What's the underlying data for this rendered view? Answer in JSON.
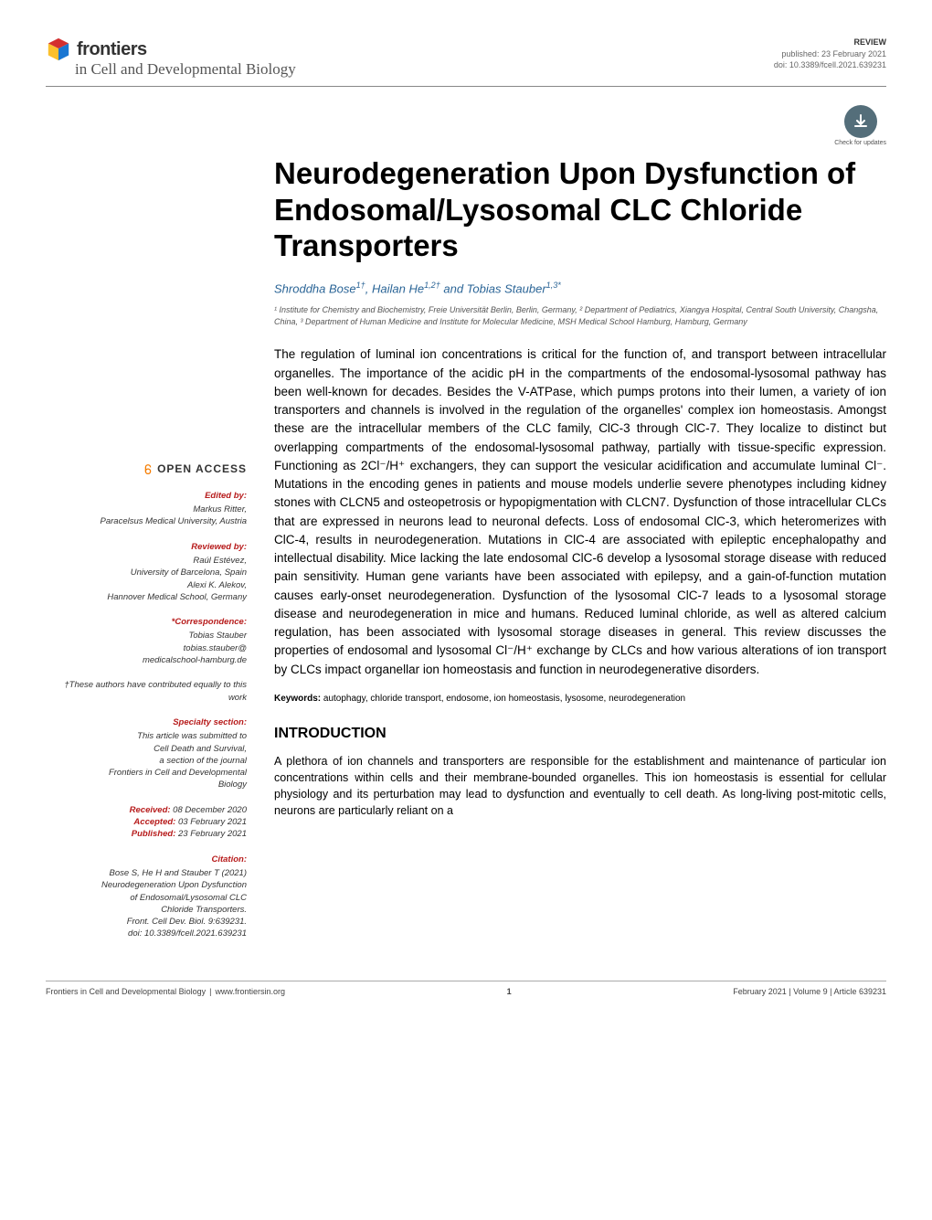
{
  "header": {
    "logo_text": "frontiers",
    "journal_name": "in Cell and Developmental Biology",
    "pub_type": "REVIEW",
    "pub_date": "published: 23 February 2021",
    "doi": "doi: 10.3389/fcell.2021.639231"
  },
  "badge": {
    "label": "Check for updates"
  },
  "title": "Neurodegeneration Upon Dysfunction of Endosomal/Lysosomal CLC Chloride Transporters",
  "authors_html": "Shroddha Bose<sup>1†</sup>, Hailan He<sup>1,2†</sup> and Tobias Stauber<sup>1,3*</sup>",
  "affiliations": "¹ Institute for Chemistry and Biochemistry, Freie Universität Berlin, Berlin, Germany, ² Department of Pediatrics, Xiangya Hospital, Central South University, Changsha, China, ³ Department of Human Medicine and Institute for Molecular Medicine, MSH Medical School Hamburg, Hamburg, Germany",
  "abstract": "The regulation of luminal ion concentrations is critical for the function of, and transport between intracellular organelles. The importance of the acidic pH in the compartments of the endosomal-lysosomal pathway has been well-known for decades. Besides the V-ATPase, which pumps protons into their lumen, a variety of ion transporters and channels is involved in the regulation of the organelles' complex ion homeostasis. Amongst these are the intracellular members of the CLC family, ClC-3 through ClC-7. They localize to distinct but overlapping compartments of the endosomal-lysosomal pathway, partially with tissue-specific expression. Functioning as 2Cl⁻/H⁺ exchangers, they can support the vesicular acidification and accumulate luminal Cl⁻. Mutations in the encoding genes in patients and mouse models underlie severe phenotypes including kidney stones with CLCN5 and osteopetrosis or hypopigmentation with CLCN7. Dysfunction of those intracellular CLCs that are expressed in neurons lead to neuronal defects. Loss of endosomal ClC-3, which heteromerizes with ClC-4, results in neurodegeneration. Mutations in ClC-4 are associated with epileptic encephalopathy and intellectual disability. Mice lacking the late endosomal ClC-6 develop a lysosomal storage disease with reduced pain sensitivity. Human gene variants have been associated with epilepsy, and a gain-of-function mutation causes early-onset neurodegeneration. Dysfunction of the lysosomal ClC-7 leads to a lysosomal storage disease and neurodegeneration in mice and humans. Reduced luminal chloride, as well as altered calcium regulation, has been associated with lysosomal storage diseases in general. This review discusses the properties of endosomal and lysosomal Cl⁻/H⁺ exchange by CLCs and how various alterations of ion transport by CLCs impact organellar ion homeostasis and function in neurodegenerative disorders.",
  "keywords_label": "Keywords:",
  "keywords": " autophagy, chloride transport, endosome, ion homeostasis, lysosome, neurodegeneration",
  "sections": {
    "intro_heading": "INTRODUCTION",
    "intro_text": "A plethora of ion channels and transporters are responsible for the establishment and maintenance of particular ion concentrations within cells and their membrane-bounded organelles. This ion homeostasis is essential for cellular physiology and its perturbation may lead to dysfunction and eventually to cell death. As long-living post-mitotic cells, neurons are particularly reliant on a"
  },
  "meta": {
    "open_access": "OPEN ACCESS",
    "edited_by_label": "Edited by:",
    "edited_by": "Markus Ritter,\nParacelsus Medical University, Austria",
    "reviewed_by_label": "Reviewed by:",
    "reviewed_by": "Raúl Estévez,\nUniversity of Barcelona, Spain\nAlexi K. Alekov,\nHannover Medical School, Germany",
    "correspondence_label": "*Correspondence:",
    "correspondence": "Tobias Stauber\ntobias.stauber@\nmedicalschool-hamburg.de",
    "contributed_note": "†These authors have contributed equally to this work",
    "specialty_label": "Specialty section:",
    "specialty": "This article was submitted to\nCell Death and Survival,\na section of the journal\nFrontiers in Cell and Developmental\nBiology",
    "received_label": "Received:",
    "received": " 08 December 2020",
    "accepted_label": "Accepted:",
    "accepted": " 03 February 2021",
    "published_label": "Published:",
    "published": " 23 February 2021",
    "citation_label": "Citation:",
    "citation": "Bose S, He H and Stauber T (2021)\nNeurodegeneration Upon Dysfunction\nof Endosomal/Lysosomal CLC\nChloride Transporters.\nFront. Cell Dev. Biol. 9:639231.\ndoi: 10.3389/fcell.2021.639231"
  },
  "footer": {
    "left": "Frontiers in Cell and Developmental Biology",
    "left_url": "www.frontiersin.org",
    "page": "1",
    "right": "February 2021 | Volume 9 | Article 639231"
  },
  "colors": {
    "heading_red": "#b71c1c",
    "author_blue": "#2a6496",
    "badge_bg": "#546e7a",
    "text_gray": "#555555"
  }
}
